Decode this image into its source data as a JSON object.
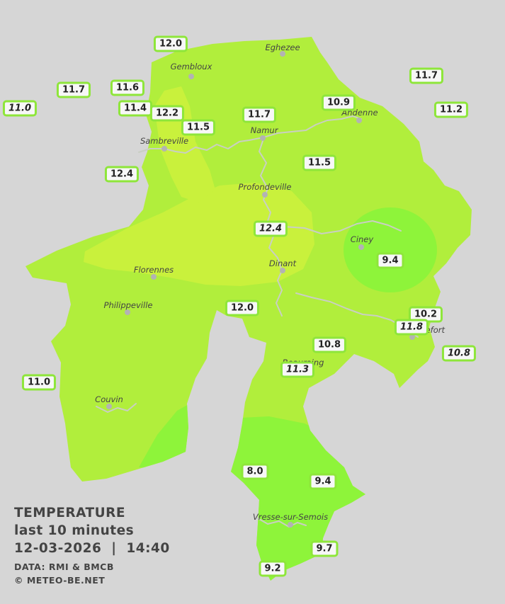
{
  "legend": {
    "title": "TEMPERATURE",
    "period": "last 10 minutes",
    "datetime": "12-03-2026  |  14:40",
    "source": "DATA: RMI & BMCB",
    "copyright": "© METEO-BE.NET"
  },
  "colors": {
    "background": "#d6d6d6",
    "region_base": "#b1ee3c",
    "zone_warm": "#c9f13c",
    "zone_cool": "#8ef43a",
    "rivers": "#c9cfc3",
    "badge_border": "#8ee63a"
  },
  "places": [
    {
      "name": "Eghezee"
    },
    {
      "name": "Gembloux"
    },
    {
      "name": "Andenne"
    },
    {
      "name": "Namur"
    },
    {
      "name": "Sambreville"
    },
    {
      "name": "Profondeville"
    },
    {
      "name": "Ciney"
    },
    {
      "name": "Dinant"
    },
    {
      "name": "Florennes"
    },
    {
      "name": "Philippeville"
    },
    {
      "name": "Rochefort"
    },
    {
      "name": "Beauraing"
    },
    {
      "name": "Couvin"
    },
    {
      "name": "Vresse-sur-Semois"
    }
  ],
  "readings": [
    {
      "value": "12.0"
    },
    {
      "value": "11.7"
    },
    {
      "value": "11.6"
    },
    {
      "value": "11.0",
      "italic": true
    },
    {
      "value": "11.4"
    },
    {
      "value": "12.2"
    },
    {
      "value": "11.5"
    },
    {
      "value": "11.7"
    },
    {
      "value": "10.9"
    },
    {
      "value": "11.7"
    },
    {
      "value": "11.2"
    },
    {
      "value": "12.4"
    },
    {
      "value": "11.5"
    },
    {
      "value": "12.4",
      "italic": true
    },
    {
      "value": "9.4"
    },
    {
      "value": "12.0"
    },
    {
      "value": "10.2"
    },
    {
      "value": "11.8",
      "italic": true
    },
    {
      "value": "10.8",
      "italic": true
    },
    {
      "value": "10.8"
    },
    {
      "value": "11.3",
      "italic": true
    },
    {
      "value": "11.0"
    },
    {
      "value": "8.0"
    },
    {
      "value": "9.4"
    },
    {
      "value": "9.7"
    },
    {
      "value": "9.2"
    }
  ]
}
